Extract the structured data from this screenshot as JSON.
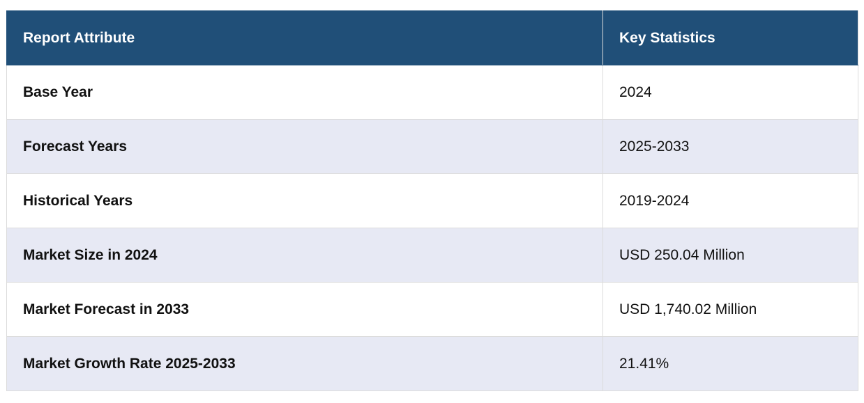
{
  "table": {
    "header": [
      "Report Attribute",
      "Key Statistics"
    ],
    "rows": [
      [
        "Base Year",
        "2024"
      ],
      [
        "Forecast Years",
        "2025-2033"
      ],
      [
        "Historical Years",
        "2019-2024"
      ],
      [
        "Market Size in 2024",
        "USD 250.04 Million"
      ],
      [
        "Market Forecast in 2033",
        "USD 1,740.02 Million"
      ],
      [
        "Market Growth Rate 2025-2033",
        "21.41%"
      ]
    ]
  }
}
